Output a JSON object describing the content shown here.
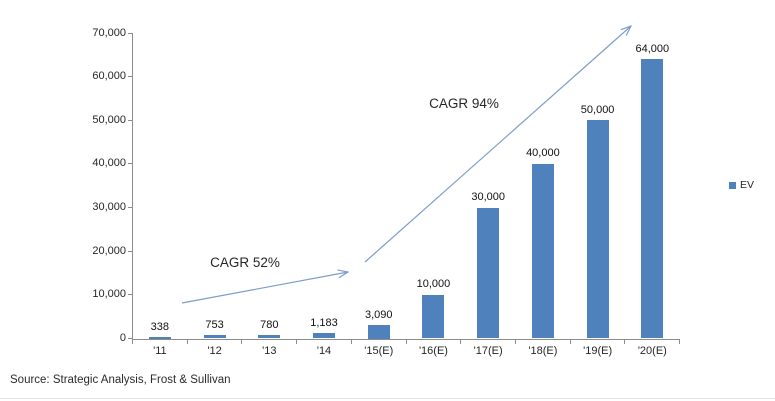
{
  "chart_data": {
    "type": "bar",
    "title": "",
    "categories": [
      "'11",
      "'12",
      "'13",
      "'14",
      "'15(E)",
      "'16(E)",
      "'17(E)",
      "'18(E)",
      "'19(E)",
      "'20(E)"
    ],
    "values": [
      338,
      753,
      780,
      1183,
      3090,
      10000,
      30000,
      40000,
      50000,
      64000
    ],
    "data_labels": [
      "338",
      "753",
      "780",
      "1,183",
      "3,090",
      "10,000",
      "30,000",
      "40,000",
      "50,000",
      "64,000"
    ],
    "series_name": "EV",
    "ylim": [
      0,
      70000
    ],
    "ytick_step": 10000,
    "ytick_labels": [
      "0",
      "10,000",
      "20,000",
      "30,000",
      "40,000",
      "50,000",
      "60,000",
      "70,000"
    ],
    "grid": false,
    "legend_position": "right",
    "bar_color": "#4F81BD"
  },
  "annotations": {
    "cagr1": "CAGR 52%",
    "cagr2": "CAGR 94%"
  },
  "legend": {
    "ev_label": "EV",
    "swatch_color": "#4F81BD"
  },
  "source": "Source: Strategic Analysis, Frost & Sullivan",
  "colors": {
    "bar": "#4F81BD",
    "arrow": "#7E9DC8",
    "axis_line": "#8C8C8C",
    "label_text": "#262626"
  }
}
